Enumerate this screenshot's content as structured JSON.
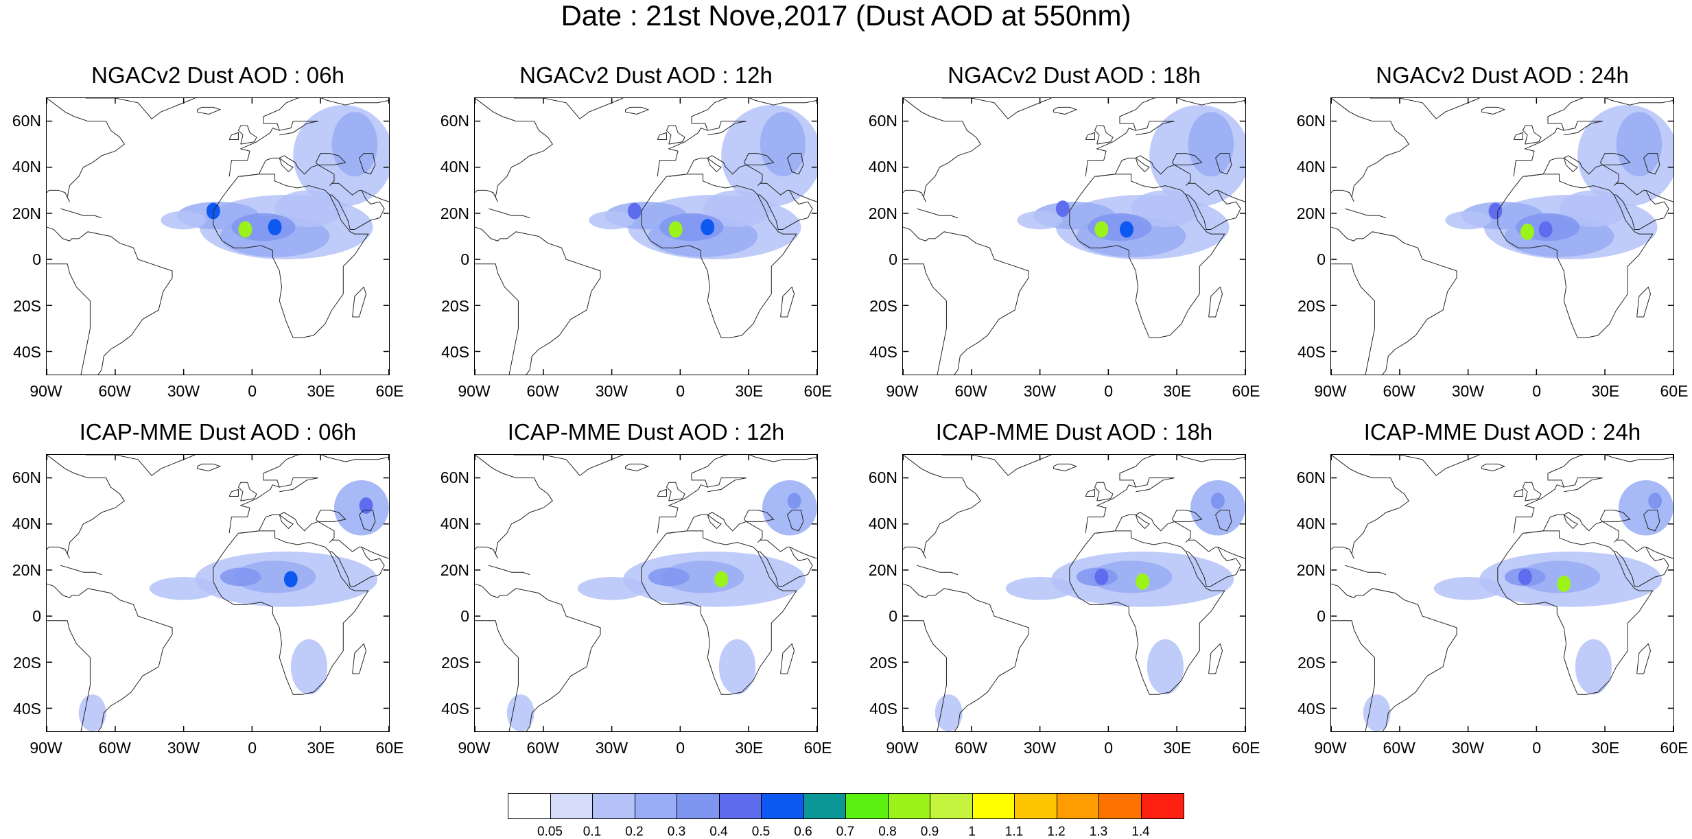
{
  "title": "Date : 21st Nove,2017 (Dust AOD at 550nm)",
  "map": {
    "lon_range": [
      -90,
      60
    ],
    "lat_range": [
      -50,
      70
    ],
    "y_ticks": [
      {
        "label": "60N",
        "lat": 60
      },
      {
        "label": "40N",
        "lat": 40
      },
      {
        "label": "20N",
        "lat": 20
      },
      {
        "label": "0",
        "lat": 0
      },
      {
        "label": "20S",
        "lat": -20
      },
      {
        "label": "40S",
        "lat": -40
      }
    ],
    "x_ticks": [
      {
        "label": "90W",
        "lon": -90
      },
      {
        "label": "60W",
        "lon": -60
      },
      {
        "label": "30W",
        "lon": -30
      },
      {
        "label": "0",
        "lon": 0
      },
      {
        "label": "30E",
        "lon": 30
      },
      {
        "label": "60E",
        "lon": 60
      }
    ]
  },
  "panels": [
    {
      "title": "NGACv2 Dust AOD : 06h",
      "model": "NGACv2",
      "hour": 6,
      "hotspots": [
        [
          -3,
          13,
          0.8
        ],
        [
          -17,
          21,
          0.5
        ],
        [
          10,
          14,
          0.5
        ]
      ]
    },
    {
      "title": "NGACv2 Dust AOD : 12h",
      "model": "NGACv2",
      "hour": 12,
      "hotspots": [
        [
          -2,
          13,
          0.8
        ],
        [
          -20,
          21,
          0.4
        ],
        [
          12,
          14,
          0.5
        ]
      ]
    },
    {
      "title": "NGACv2 Dust AOD : 18h",
      "model": "NGACv2",
      "hour": 18,
      "hotspots": [
        [
          -3,
          13,
          0.8
        ],
        [
          -20,
          22,
          0.4
        ],
        [
          8,
          13,
          0.5
        ]
      ]
    },
    {
      "title": "NGACv2 Dust AOD : 24h",
      "model": "NGACv2",
      "hour": 24,
      "hotspots": [
        [
          -4,
          12,
          0.8
        ],
        [
          -18,
          21,
          0.4
        ],
        [
          4,
          13,
          0.4
        ]
      ]
    },
    {
      "title": "ICAP-MME Dust AOD : 06h",
      "model": "ICAP-MME",
      "hour": 6,
      "hotspots": [
        [
          17,
          16,
          0.5
        ],
        [
          50,
          48,
          0.4
        ]
      ]
    },
    {
      "title": "ICAP-MME Dust AOD : 12h",
      "model": "ICAP-MME",
      "hour": 12,
      "hotspots": [
        [
          18,
          16,
          0.8
        ],
        [
          50,
          50,
          0.3
        ]
      ]
    },
    {
      "title": "ICAP-MME Dust AOD : 18h",
      "model": "ICAP-MME",
      "hour": 18,
      "hotspots": [
        [
          15,
          15,
          0.8
        ],
        [
          -3,
          17,
          0.4
        ],
        [
          48,
          50,
          0.3
        ]
      ]
    },
    {
      "title": "ICAP-MME Dust AOD : 24h",
      "model": "ICAP-MME",
      "hour": 24,
      "hotspots": [
        [
          12,
          14,
          0.8
        ],
        [
          -5,
          17,
          0.4
        ],
        [
          52,
          50,
          0.3
        ]
      ]
    }
  ],
  "colorbar": {
    "levels": [
      "0.05",
      "0.1",
      "0.2",
      "0.3",
      "0.4",
      "0.5",
      "0.6",
      "0.7",
      "0.8",
      "0.9",
      "1",
      "1.1",
      "1.2",
      "1.3",
      "1.4"
    ],
    "colors": [
      "#ffffff",
      "#d6ddfb",
      "#b4c2f8",
      "#98adf5",
      "#7f96f1",
      "#5e6ded",
      "#0c58f0",
      "#0c9797",
      "#5cf112",
      "#9cf319",
      "#c6f43e",
      "#ffff00",
      "#fec600",
      "#ff9c00",
      "#fe7300",
      "#fe2010"
    ]
  }
}
